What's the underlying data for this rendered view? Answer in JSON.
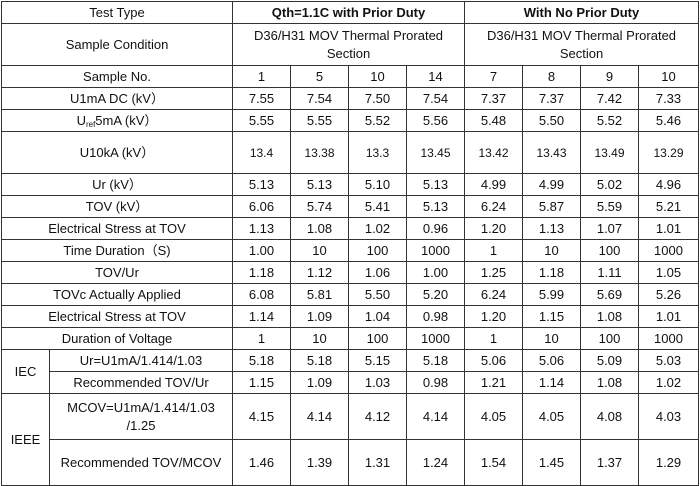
{
  "header": {
    "test_type": "Test Type",
    "group_a": "Qth=1.1C with Prior Duty",
    "group_b": "With No Prior Duty",
    "sample_condition": "Sample Condition",
    "condition_a": "D36/H31 MOV Thermal Prorated Section",
    "condition_b": "D36/H31 MOV Thermal Prorated Section",
    "sample_no_label": "Sample No.",
    "sample_nos": [
      "1",
      "5",
      "10",
      "14",
      "7",
      "8",
      "9",
      "10"
    ]
  },
  "rows": [
    {
      "label": "U1mA DC (kV）",
      "values": [
        "7.55",
        "7.54",
        "7.50",
        "7.54",
        "7.37",
        "7.37",
        "7.42",
        "7.33"
      ]
    },
    {
      "label_pre": "U",
      "label_sub": "ref",
      "label_post": "5mA (kV）",
      "values": [
        "5.55",
        "5.55",
        "5.52",
        "5.56",
        "5.48",
        "5.50",
        "5.52",
        "5.46"
      ]
    },
    {
      "label": "U10kA (kV）",
      "values": [
        "13.4",
        "13.38",
        "13.3",
        "13.45",
        "13.42",
        "13.43",
        "13.49",
        "13.29"
      ]
    },
    {
      "label": "Ur (kV）",
      "values": [
        "5.13",
        "5.13",
        "5.10",
        "5.13",
        "4.99",
        "4.99",
        "5.02",
        "4.96"
      ]
    },
    {
      "label": "TOV (kV）",
      "values": [
        "6.06",
        "5.74",
        "5.41",
        "5.13",
        "6.24",
        "5.87",
        "5.59",
        "5.21"
      ]
    },
    {
      "label": "Electrical Stress at TOV",
      "values": [
        "1.13",
        "1.08",
        "1.02",
        "0.96",
        "1.20",
        "1.13",
        "1.07",
        "1.01"
      ]
    },
    {
      "label": "Time Duration（S)",
      "values": [
        "1.00",
        "10",
        "100",
        "1000",
        "1",
        "10",
        "100",
        "1000"
      ]
    },
    {
      "label": "TOV/Ur",
      "values": [
        "1.18",
        "1.12",
        "1.06",
        "1.00",
        "1.25",
        "1.18",
        "1.11",
        "1.05"
      ]
    },
    {
      "label": "TOVc Actually Applied",
      "values": [
        "6.08",
        "5.81",
        "5.50",
        "5.20",
        "6.24",
        "5.99",
        "5.69",
        "5.26"
      ]
    },
    {
      "label": "Electrical Stress at TOV",
      "values": [
        "1.14",
        "1.09",
        "1.04",
        "0.98",
        "1.20",
        "1.15",
        "1.08",
        "1.01"
      ]
    },
    {
      "label": "Duration of Voltage",
      "values": [
        "1",
        "10",
        "100",
        "1000",
        "1",
        "10",
        "100",
        "1000"
      ]
    }
  ],
  "iec": {
    "group_label": "IEC",
    "rows": [
      {
        "label": "Ur=U1mA/1.414/1.03",
        "values": [
          "5.18",
          "5.18",
          "5.15",
          "5.18",
          "5.06",
          "5.06",
          "5.09",
          "5.03"
        ]
      },
      {
        "label": "Recommended TOV/Ur",
        "values": [
          "1.15",
          "1.09",
          "1.03",
          "0.98",
          "1.21",
          "1.14",
          "1.08",
          "1.02"
        ]
      }
    ]
  },
  "ieee": {
    "group_label": "IEEE",
    "rows": [
      {
        "label": "MCOV=U1mA/1.414/1.03 /1.25",
        "values": [
          "4.15",
          "4.14",
          "4.12",
          "4.14",
          "4.05",
          "4.05",
          "4.08",
          "4.03"
        ]
      },
      {
        "label": "Recommended TOV/MCOV",
        "values": [
          "1.46",
          "1.39",
          "1.31",
          "1.24",
          "1.54",
          "1.45",
          "1.37",
          "1.29"
        ]
      }
    ]
  }
}
